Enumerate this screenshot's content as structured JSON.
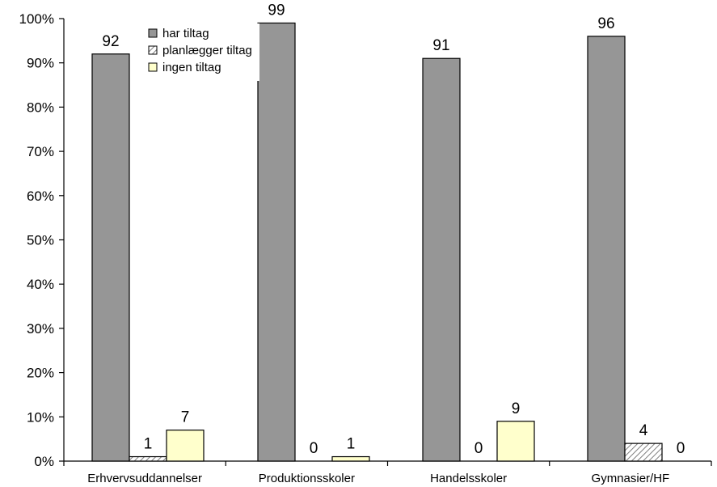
{
  "chart_data": {
    "type": "bar",
    "title": "",
    "xlabel": "",
    "ylabel": "",
    "ylim": [
      0,
      100
    ],
    "y_ticks": [
      "0%",
      "10%",
      "20%",
      "30%",
      "40%",
      "50%",
      "60%",
      "70%",
      "80%",
      "90%",
      "100%"
    ],
    "categories": [
      "Erhvervsuddannelser",
      "Produktionsskoler",
      "Handelsskoler",
      "Gymnasier/HF"
    ],
    "series": [
      {
        "name": "har tiltag",
        "values": [
          92,
          99,
          91,
          96
        ],
        "labels": [
          "92",
          "99",
          "91",
          "96"
        ],
        "color": "#969696",
        "pattern": "solid"
      },
      {
        "name": "planlægger tiltag",
        "values": [
          1,
          0,
          0,
          4
        ],
        "labels": [
          "1",
          "0",
          "0",
          "4"
        ],
        "color": "#d9d9d9",
        "pattern": "hatch"
      },
      {
        "name": "ingen tiltag",
        "values": [
          7,
          1,
          9,
          0
        ],
        "labels": [
          "7",
          "1",
          "9",
          "0"
        ],
        "color": "#ffffcc",
        "pattern": "solid"
      }
    ],
    "grid": false,
    "legend_position": "top-left, inside plot"
  }
}
